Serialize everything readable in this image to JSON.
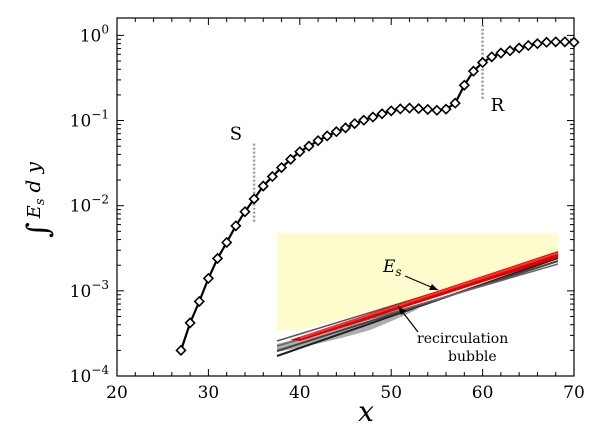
{
  "chart_data": {
    "type": "line",
    "title": "",
    "xlabel": "x",
    "ylabel_integral": "∫",
    "ylabel_var": "E",
    "ylabel_sub": "s",
    "ylabel_tail": "d y",
    "xlim": [
      20,
      70
    ],
    "ylim": [
      0.0001,
      1.6
    ],
    "yscale": "log",
    "xticks": [
      20,
      30,
      40,
      50,
      60,
      70
    ],
    "xtick_labels": [
      "20",
      "30",
      "40",
      "50",
      "60",
      "70"
    ],
    "yticks": [
      0.0001,
      0.001,
      0.01,
      0.1,
      1
    ],
    "ytick_labels": [
      {
        "base": "10",
        "exp": "−4"
      },
      {
        "base": "10",
        "exp": "−3"
      },
      {
        "base": "10",
        "exp": "−2"
      },
      {
        "base": "10",
        "exp": "−1"
      },
      {
        "base": "10",
        "exp": "0"
      }
    ],
    "grid": false,
    "series": [
      {
        "marker": "diamond",
        "color": "#000000",
        "x": [
          27,
          28,
          29,
          30,
          31,
          32,
          33,
          34,
          35,
          36,
          37,
          38,
          39,
          40,
          41,
          42,
          43,
          44,
          45,
          46,
          47,
          48,
          49,
          50,
          51,
          52,
          53,
          54,
          55,
          56,
          57,
          58,
          59,
          60,
          61,
          62,
          63,
          64,
          65,
          66,
          67,
          68,
          69,
          70
        ],
        "y": [
          0.0002,
          0.00042,
          0.00075,
          0.0014,
          0.0024,
          0.0037,
          0.0058,
          0.0085,
          0.012,
          0.017,
          0.022,
          0.028,
          0.035,
          0.043,
          0.05,
          0.058,
          0.066,
          0.074,
          0.082,
          0.092,
          0.101,
          0.11,
          0.12,
          0.13,
          0.137,
          0.14,
          0.138,
          0.135,
          0.132,
          0.136,
          0.16,
          0.26,
          0.38,
          0.48,
          0.56,
          0.62,
          0.66,
          0.71,
          0.76,
          0.8,
          0.83,
          0.84,
          0.84,
          0.83
        ]
      }
    ],
    "annotations": [
      {
        "text": "S",
        "x": 35
      },
      {
        "text": "R",
        "x": 60
      }
    ],
    "inset": {
      "background": "#fdfccc",
      "labels": {
        "es_var": "E",
        "es_sub": "s",
        "bubble_line1": "recirculation",
        "bubble_line2": "bubble"
      },
      "colors": {
        "shear": "#e00000",
        "wall": "#333333",
        "bubble": "#999999"
      }
    }
  }
}
